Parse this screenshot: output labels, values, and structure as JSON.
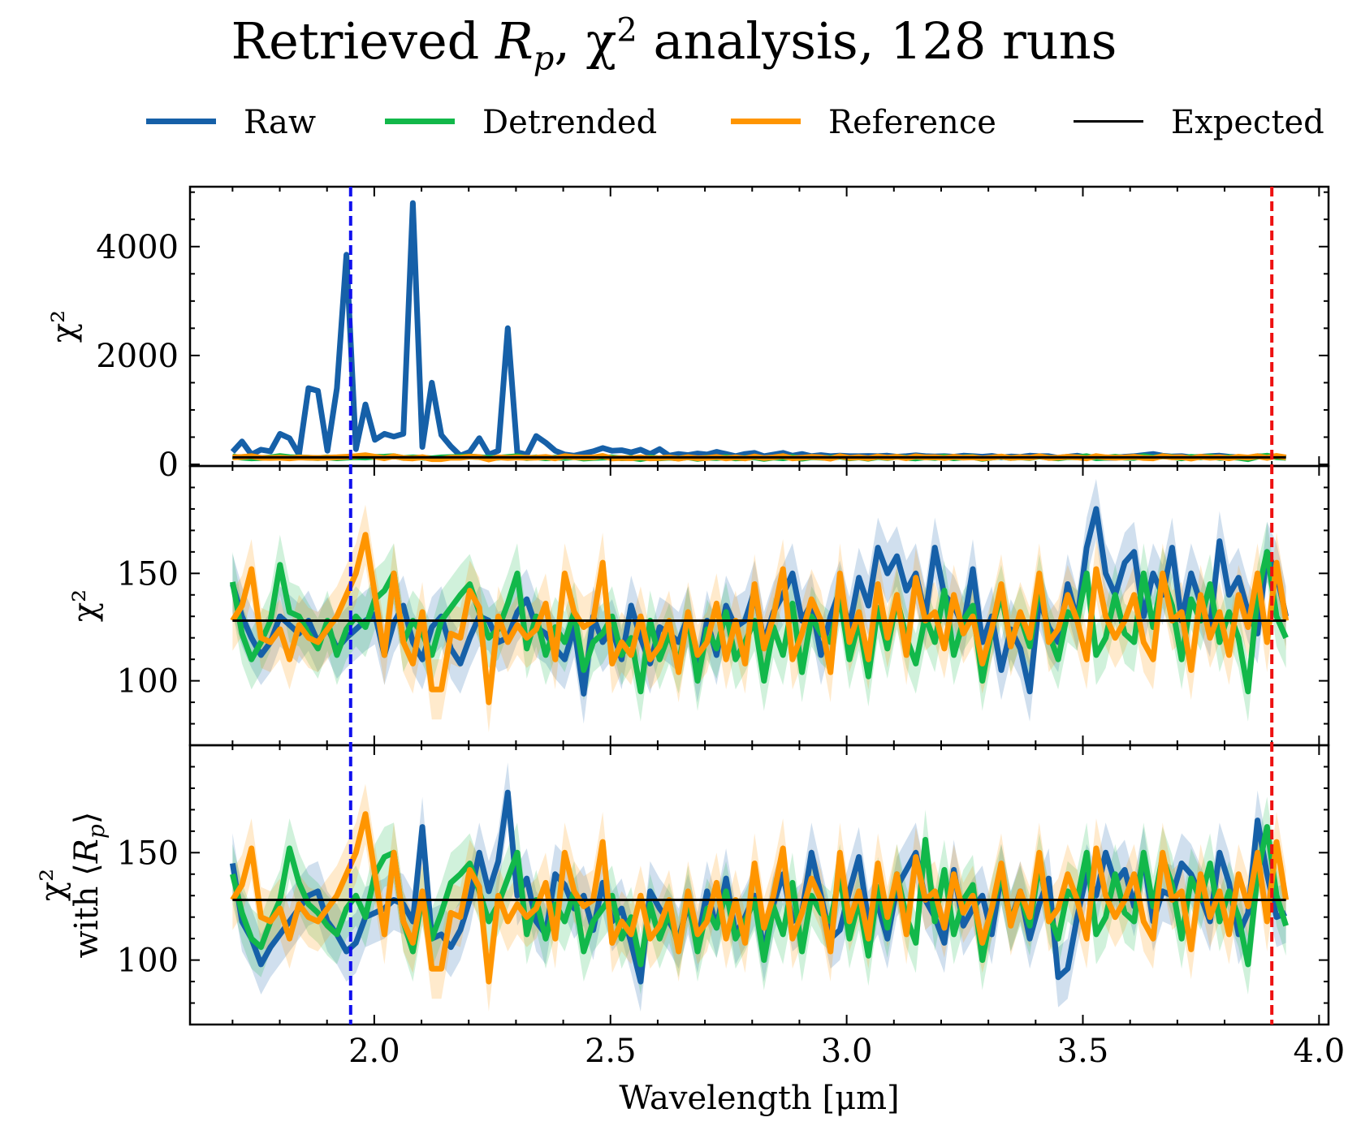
{
  "chart_data": {
    "type": "line",
    "title": "Retrieved R_p, χ² analysis, 128 runs",
    "title_parts": {
      "prefix": "Retrieved ",
      "symbol": "R",
      "subscript": "p",
      "middle": ", χ",
      "superscript": "2",
      "suffix": " analysis, 128 runs"
    },
    "xlabel": "Wavelength [μm]",
    "xlim": [
      1.61,
      4.02
    ],
    "xticks": [
      2.0,
      2.5,
      3.0,
      3.5,
      4.0
    ],
    "xtick_labels": [
      "2.0",
      "2.5",
      "3.0",
      "3.5",
      "4.0"
    ],
    "legend": {
      "position": "top-center",
      "entries": [
        {
          "label": "Raw",
          "color": "#1660a8"
        },
        {
          "label": "Detrended",
          "color": "#12b84a"
        },
        {
          "label": "Reference",
          "color": "#ff9500"
        },
        {
          "label": "Expected",
          "color": "#000000"
        }
      ]
    },
    "vlines": [
      {
        "x": 1.95,
        "color": "#1010ee",
        "style": "dashed"
      },
      {
        "x": 3.9,
        "color": "#ee1010",
        "style": "dashed"
      }
    ],
    "expected_value": 128,
    "x_grid": {
      "start": 1.7,
      "end": 3.93,
      "count": 112
    },
    "panels": [
      {
        "ylabel": "χ²",
        "ylim": [
          -30,
          5100
        ],
        "yticks": [
          0,
          2000,
          4000
        ],
        "ytick_labels": [
          "0",
          "2000",
          "4000"
        ],
        "band_width": 0
      },
      {
        "ylabel": "χ²",
        "ylim": [
          70,
          200
        ],
        "yticks": [
          100,
          150
        ],
        "ytick_labels": [
          "100",
          "150"
        ],
        "band_width": 14
      },
      {
        "ylabel": "χ²",
        "ylabel_line2": "with ⟨R_p⟩",
        "ylabel_parts": {
          "prefix": "with ⟨",
          "symbol": "R",
          "subscript": "p",
          "suffix": "⟩"
        },
        "ylim": [
          70,
          200
        ],
        "yticks": [
          100,
          150
        ],
        "ytick_labels": [
          "100",
          "150"
        ],
        "band_width": 14
      }
    ],
    "series": [
      {
        "name": "Raw",
        "color": "#1660a8",
        "values": [
          230,
          420,
          180,
          270,
          240,
          560,
          480,
          180,
          1400,
          1350,
          250,
          1400,
          3850,
          280,
          1100,
          450,
          560,
          510,
          560,
          4800,
          320,
          1500,
          540,
          330,
          160,
          230,
          480,
          180,
          250,
          2500,
          220,
          180,
          520,
          400,
          250,
          180,
          160,
          200,
          240,
          300,
          250,
          260,
          220,
          270,
          190,
          280,
          160,
          190,
          170,
          200,
          180,
          230,
          190,
          150,
          190,
          210,
          150,
          180,
          210,
          160,
          190,
          150,
          170,
          150,
          160,
          150,
          150,
          155,
          150,
          160,
          140,
          150,
          165,
          150,
          145,
          150,
          140,
          160,
          150,
          140,
          155,
          130,
          145,
          135,
          160,
          150,
          150,
          120,
          140,
          160,
          130,
          140,
          120,
          120,
          140,
          150,
          170,
          190,
          160,
          145,
          150,
          130,
          140,
          150,
          160,
          140,
          130,
          120,
          150,
          140,
          150,
          120
        ],
        "zoom_values": [
          145,
          130,
          120,
          112,
          118,
          130,
          126,
          122,
          128,
          118,
          125,
          115,
          120,
          124,
          128,
          131,
          112,
          127,
          135,
          118,
          110,
          125,
          130,
          115,
          108,
          120,
          130,
          128,
          118,
          120,
          132,
          138,
          125,
          122,
          115,
          110,
          125,
          94,
          130,
          118,
          124,
          110,
          135,
          120,
          108,
          125,
          122,
          118,
          130,
          104,
          128,
          112,
          135,
          125,
          128,
          142,
          118,
          132,
          140,
          150,
          128,
          136,
          112,
          130,
          142,
          125,
          148,
          135,
          162,
          150,
          158,
          142,
          150,
          130,
          162,
          140,
          135,
          125,
          152,
          118,
          130,
          105,
          124,
          115,
          95,
          138,
          125,
          118,
          145,
          128,
          162,
          180,
          150,
          140,
          155,
          160,
          130,
          150,
          140,
          162,
          128,
          150,
          136,
          125,
          165,
          140,
          148,
          132,
          122,
          160,
          150,
          130
        ],
        "rp_values": [
          145,
          118,
          110,
          98,
          106,
          112,
          118,
          124,
          130,
          132,
          118,
          112,
          104,
          108,
          120,
          122,
          124,
          128,
          126,
          118,
          162,
          110,
          112,
          106,
          114,
          128,
          150,
          132,
          146,
          178,
          130,
          138,
          118,
          112,
          140,
          135,
          124,
          130,
          114,
          136,
          118,
          124,
          108,
          90,
          132,
          124,
          118,
          110,
          126,
          108,
          132,
          115,
          138,
          112,
          120,
          130,
          104,
          126,
          140,
          118,
          122,
          150,
          130,
          110,
          114,
          132,
          148,
          118,
          126,
          110,
          134,
          142,
          150,
          128,
          120,
          108,
          142,
          116,
          124,
          130,
          112,
          140,
          118,
          132,
          110,
          126,
          138,
          92,
          96,
          120,
          140,
          130,
          150,
          136,
          142,
          125,
          148,
          118,
          132,
          130,
          145,
          140,
          130,
          118,
          150,
          136,
          112,
          122,
          165,
          140,
          120,
          122
        ]
      },
      {
        "name": "Detrended",
        "color": "#12b84a",
        "values": [
          146,
          122,
          110,
          118,
          128,
          154,
          132,
          130,
          122,
          115,
          128,
          112,
          124,
          130,
          125,
          138,
          142,
          150,
          118,
          128,
          122,
          112,
          128,
          134,
          140,
          145,
          132,
          120,
          124,
          136,
          150,
          115,
          130,
          112,
          125,
          118,
          132,
          105,
          118,
          122,
          130,
          112,
          120,
          95,
          128,
          110,
          122,
          108,
          130,
          100,
          124,
          115,
          132,
          110,
          118,
          128,
          100,
          125,
          112,
          136,
          104,
          130,
          122,
          118,
          140,
          110,
          128,
          102,
          134,
          115,
          138,
          120,
          108,
          130,
          118,
          142,
          112,
          128,
          135,
          100,
          124,
          140,
          118,
          130,
          116,
          145,
          122,
          110,
          132,
          128,
          150,
          112,
          120,
          140,
          122,
          118,
          150,
          125,
          148,
          135,
          110,
          138,
          128,
          145,
          118,
          132,
          120,
          95,
          140,
          160,
          130,
          120
        ],
        "rp_values": [
          140,
          122,
          110,
          106,
          118,
          128,
          152,
          136,
          126,
          122,
          116,
          112,
          124,
          130,
          120,
          140,
          148,
          150,
          118,
          104,
          130,
          110,
          122,
          136,
          140,
          145,
          132,
          118,
          126,
          138,
          150,
          112,
          128,
          110,
          126,
          118,
          132,
          104,
          118,
          124,
          130,
          110,
          120,
          98,
          126,
          110,
          122,
          106,
          130,
          104,
          124,
          115,
          132,
          110,
          118,
          128,
          100,
          125,
          112,
          136,
          104,
          130,
          122,
          118,
          140,
          110,
          128,
          102,
          134,
          115,
          140,
          120,
          108,
          156,
          118,
          142,
          112,
          128,
          135,
          100,
          124,
          140,
          118,
          130,
          116,
          145,
          122,
          110,
          132,
          128,
          150,
          112,
          120,
          140,
          122,
          118,
          150,
          125,
          148,
          135,
          110,
          138,
          128,
          145,
          118,
          132,
          120,
          98,
          140,
          162,
          130,
          116
        ]
      },
      {
        "name": "Reference",
        "color": "#ff9500",
        "values": [
          128,
          135,
          152,
          120,
          118,
          124,
          110,
          126,
          120,
          118,
          124,
          130,
          140,
          150,
          168,
          140,
          112,
          150,
          118,
          108,
          132,
          96,
          96,
          122,
          120,
          142,
          134,
          90,
          130,
          118,
          126,
          120,
          124,
          136,
          110,
          150,
          132,
          125,
          128,
          155,
          108,
          118,
          112,
          130,
          110,
          116,
          128,
          104,
          132,
          112,
          118,
          136,
          110,
          128,
          108,
          145,
          115,
          130,
          152,
          110,
          122,
          138,
          128,
          104,
          150,
          118,
          132,
          110,
          145,
          120,
          140,
          112,
          148,
          128,
          132,
          115,
          140,
          122,
          130,
          108,
          124,
          145,
          116,
          132,
          120,
          150,
          118,
          124,
          140,
          128,
          110,
          152,
          130,
          120,
          128,
          140,
          118,
          110,
          150,
          128,
          132,
          105,
          140,
          120,
          132,
          112,
          140,
          125,
          150,
          118,
          155,
          128
        ]
      }
    ]
  }
}
